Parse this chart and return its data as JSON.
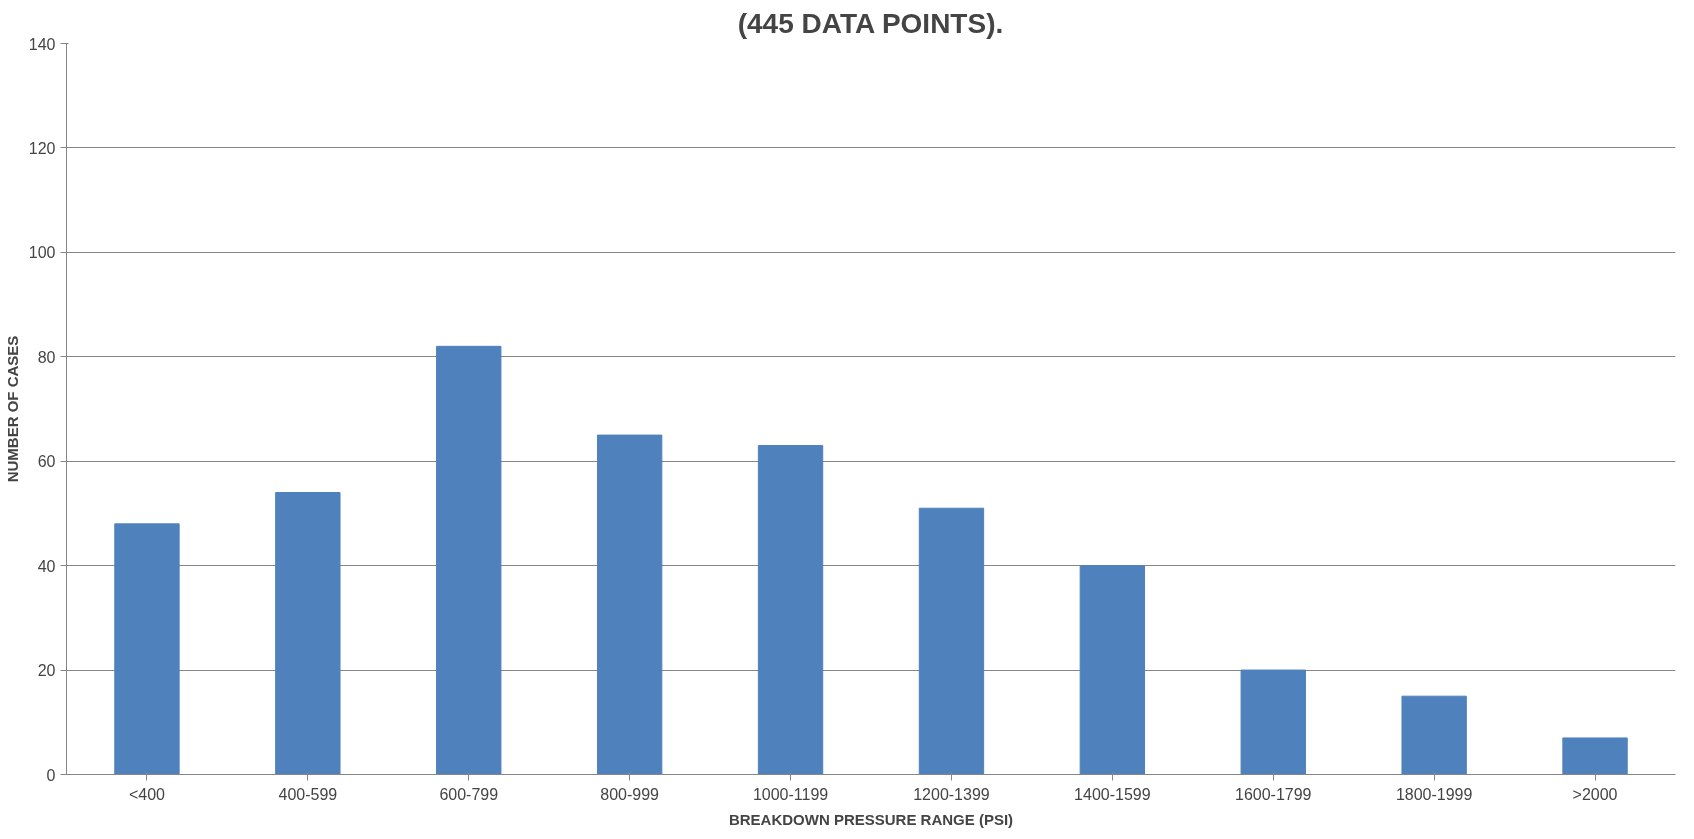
{
  "chart_data": {
    "type": "bar",
    "title": "(445 DATA POINTS).",
    "xlabel": "BREAKDOWN PRESSURE RANGE (PSI)",
    "ylabel": "NUMBER OF CASES",
    "categories": [
      "<400",
      "400-599",
      "600-799",
      "800-999",
      "1000-1199",
      "1200-1399",
      "1400-1599",
      "1600-1799",
      "1800-1999",
      ">2000"
    ],
    "values": [
      48,
      54,
      82,
      65,
      63,
      51,
      40,
      20,
      15,
      7
    ],
    "color": "#4f81bd",
    "ylim": [
      0,
      140
    ],
    "yticks": [
      0,
      20,
      40,
      60,
      80,
      100,
      120,
      140
    ],
    "grid": "y"
  }
}
